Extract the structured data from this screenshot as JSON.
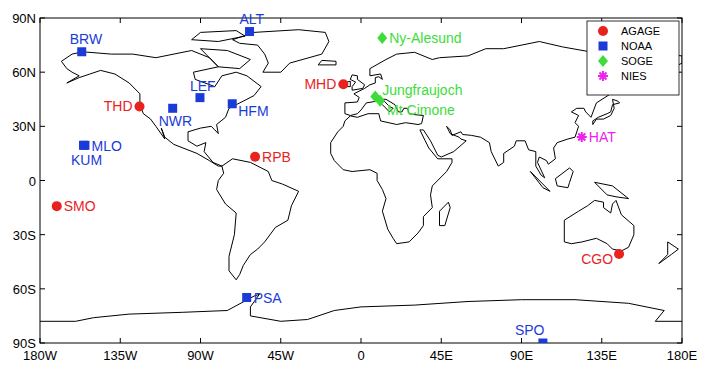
{
  "chart_data": {
    "type": "scatter",
    "xlim": [
      -180,
      180
    ],
    "ylim": [
      -90,
      90
    ],
    "xticks": [
      {
        "value": -180,
        "label": "180W"
      },
      {
        "value": -135,
        "label": "135W"
      },
      {
        "value": -90,
        "label": "90W"
      },
      {
        "value": -45,
        "label": "45W"
      },
      0,
      {
        "value": 45,
        "label": "45E"
      },
      {
        "value": 90,
        "label": "90E"
      },
      {
        "value": 135,
        "label": "135E"
      },
      {
        "value": 180,
        "label": "180E"
      }
    ],
    "yticks": [
      {
        "value": -90,
        "label": "90S"
      },
      {
        "value": -60,
        "label": "60S"
      },
      {
        "value": -30,
        "label": "30S"
      },
      0,
      {
        "value": 30,
        "label": "30N"
      },
      {
        "value": 60,
        "label": "60N"
      },
      {
        "value": 90,
        "label": "90N"
      }
    ],
    "grid": false,
    "legend": "upper right",
    "series": [
      {
        "name": "AGAGE",
        "color": "#e8231f",
        "marker": "circle",
        "x": [
          -124.2,
          -9.9,
          -59.4,
          -170.6,
          144.7
        ],
        "values": [
          41.0,
          53.3,
          13.2,
          -14.2,
          -40.7
        ],
        "labels": [
          "THD",
          "MHD",
          "RPB",
          "SMO",
          "CGO"
        ]
      },
      {
        "name": "NOAA",
        "color": "#1a3bd8",
        "marker": "square",
        "x": [
          -156.6,
          -62.5,
          -90.3,
          -105.6,
          -72.2,
          -155.6,
          -154.8,
          -64.1,
          102
        ],
        "values": [
          71.3,
          82.5,
          45.9,
          40.0,
          42.5,
          19.5,
          19.5,
          -64.8,
          -90
        ],
        "labels": [
          "BRW",
          "ALT",
          "LEF",
          "NWR",
          "HFM",
          "MLO",
          "KUM",
          "PSA",
          "SPO"
        ]
      },
      {
        "name": "SOGE",
        "color": "#3ddc3a",
        "marker": "diamond",
        "x": [
          11.9,
          8.0,
          10.7
        ],
        "values": [
          78.9,
          46.5,
          44.2
        ],
        "labels": [
          "Ny-Alesund",
          "Jungfraujoch",
          "Mt Cimone"
        ]
      },
      {
        "name": "NIES",
        "color": "#ee22ee",
        "marker": "asterisk",
        "x": [
          123.8
        ],
        "values": [
          24.1
        ],
        "labels": [
          "HAT"
        ]
      }
    ]
  }
}
